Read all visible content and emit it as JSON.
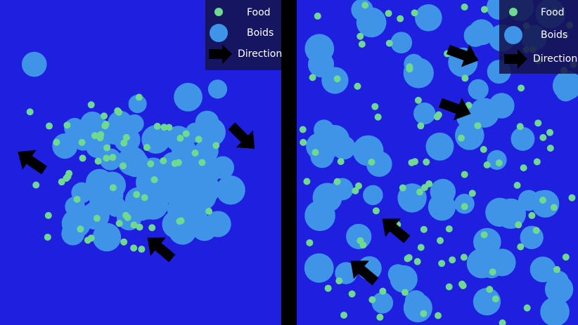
{
  "legends": [
    [
      "Food",
      "Boids",
      "Direction"
    ],
    [
      "Food",
      "Boids",
      "Direction"
    ]
  ]
}
